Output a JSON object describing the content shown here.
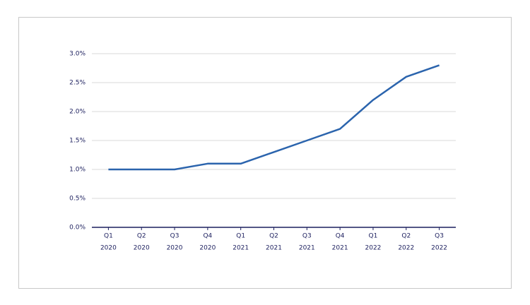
{
  "chart_data": {
    "type": "line",
    "categories": [
      [
        "Q1",
        "2020"
      ],
      [
        "Q2",
        "2020"
      ],
      [
        "Q3",
        "2020"
      ],
      [
        "Q4",
        "2020"
      ],
      [
        "Q1",
        "2021"
      ],
      [
        "Q2",
        "2021"
      ],
      [
        "Q3",
        "2021"
      ],
      [
        "Q4",
        "2021"
      ],
      [
        "Q1",
        "2022"
      ],
      [
        "Q2",
        "2022"
      ],
      [
        "Q3",
        "2022"
      ]
    ],
    "values": [
      1.0,
      1.0,
      1.0,
      1.1,
      1.1,
      1.3,
      1.5,
      1.7,
      2.2,
      2.6,
      2.8
    ],
    "color": "#2b64ad",
    "ylim": [
      0,
      3
    ],
    "yticks": [
      {
        "value": 0,
        "label": "0.0%"
      },
      {
        "value": 0.5,
        "label": "0.5%"
      },
      {
        "value": 1,
        "label": "1.0%"
      },
      {
        "value": 1.5,
        "label": "1.5%"
      },
      {
        "value": 2,
        "label": "2.0%"
      },
      {
        "value": 2.5,
        "label": "2.5%"
      },
      {
        "value": 3,
        "label": "3.0%"
      }
    ],
    "grid": true
  }
}
